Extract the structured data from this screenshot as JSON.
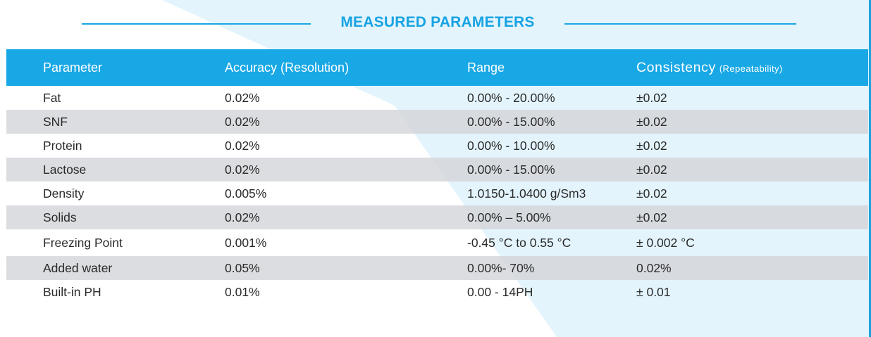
{
  "title": "MEASURED PARAMETERS",
  "colors": {
    "accent": "#18a8e6",
    "row_alt": "#d4d6d9",
    "background_tint": "#e3f4fc"
  },
  "table": {
    "headers": {
      "parameter": "Parameter",
      "accuracy": "Accuracy (Resolution)",
      "range": "Range",
      "consistency": "Consistency",
      "consistency_sub": "(Repeatability)"
    },
    "rows": [
      {
        "parameter": "Fat",
        "accuracy": "0.02%",
        "range": "0.00% - 20.00%",
        "consistency": "±0.02"
      },
      {
        "parameter": "SNF",
        "accuracy": "0.02%",
        "range": "0.00% - 15.00%",
        "consistency": "±0.02"
      },
      {
        "parameter": "Protein",
        "accuracy": "0.02%",
        "range": "0.00% - 10.00%",
        "consistency": "±0.02"
      },
      {
        "parameter": "Lactose",
        "accuracy": "0.02%",
        "range": "0.00% - 15.00%",
        "consistency": "±0.02"
      },
      {
        "parameter": "Density",
        "accuracy": "0.005%",
        "range": "1.0150-1.0400 g/Sm3",
        "consistency": "±0.02"
      },
      {
        "parameter": "Solids",
        "accuracy": "0.02%",
        "range": "0.00% – 5.00%",
        "consistency": "±0.02"
      },
      {
        "parameter": "Freezing Point",
        "accuracy": "0.001%",
        "range": "-0.45 °C to 0.55 °C",
        "consistency": "± 0.002 °C"
      },
      {
        "parameter": "Added water",
        "accuracy": "0.05%",
        "range": "0.00%- 70%",
        "consistency": "0.02%"
      },
      {
        "parameter": "Built-in PH",
        "accuracy": "0.01%",
        "range": "0.00 - 14PH",
        "consistency": "± 0.01"
      }
    ]
  }
}
